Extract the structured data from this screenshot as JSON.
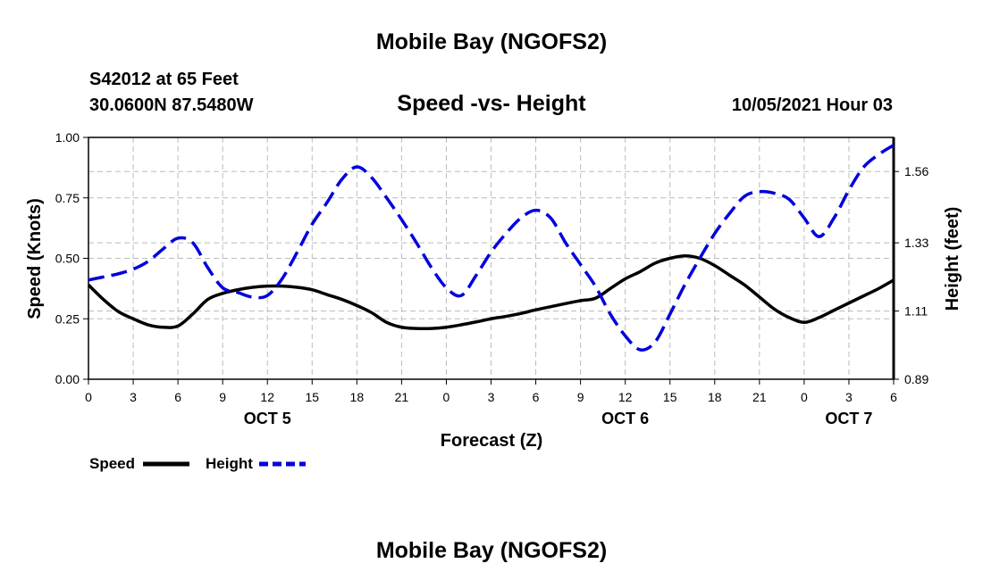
{
  "header": {
    "top_title": "Mobile Bay (NGOFS2)",
    "bottom_title": "Mobile Bay (NGOFS2)",
    "station": "S42012 at 65 Feet",
    "coords": "30.0600N  87.5480W",
    "chart_title": "Speed -vs- Height",
    "timestamp": "10/05/2021 Hour 03"
  },
  "colors": {
    "speed": "#000000",
    "height": "#0000dd",
    "grid": "#bbbbbb"
  },
  "chart_data": {
    "type": "line",
    "title": "Speed -vs- Height",
    "xlabel": "Forecast (Z)",
    "ylabel": "Speed (Knots)",
    "y2label": "Height (feet)",
    "xlim": [
      0,
      54
    ],
    "ylim": [
      0,
      1
    ],
    "y2lim": [
      0.89,
      1.67
    ],
    "grid": true,
    "x_ticks": [
      0,
      3,
      6,
      9,
      12,
      15,
      18,
      21,
      24,
      27,
      30,
      33,
      36,
      39,
      42,
      45,
      48,
      51,
      54
    ],
    "x_tick_labels": [
      "0",
      "3",
      "6",
      "9",
      "12",
      "15",
      "18",
      "21",
      "0",
      "3",
      "6",
      "9",
      "12",
      "15",
      "18",
      "21",
      "0",
      "3",
      "6"
    ],
    "date_labels": [
      {
        "x": 12,
        "label": "OCT 5"
      },
      {
        "x": 36,
        "label": "OCT 6"
      },
      {
        "x": 51,
        "label": "OCT 7"
      }
    ],
    "y_ticks": [
      0,
      0.25,
      0.5,
      0.75,
      1.0
    ],
    "y_tick_labels": [
      "0.00",
      "0.25",
      "0.50",
      "0.75",
      "1.00"
    ],
    "y2_ticks": [
      0.89,
      1.11,
      1.33,
      1.56
    ],
    "y2_tick_labels": [
      "0.89",
      "1.11",
      "1.33",
      "1.56"
    ],
    "legend": {
      "placement": "bottom-left",
      "speed_label": "Speed",
      "height_label": "Height"
    },
    "series": [
      {
        "name": "Speed",
        "axis": "left",
        "style": "solid",
        "x": [
          0,
          1,
          2,
          3,
          4,
          5,
          6,
          7,
          8,
          9,
          10,
          11,
          12,
          13,
          14,
          15,
          16,
          17,
          18,
          19,
          20,
          21,
          22,
          23,
          24,
          25,
          26,
          27,
          28,
          29,
          30,
          31,
          32,
          33,
          34,
          35,
          36,
          37,
          38,
          39,
          40,
          41,
          42,
          43,
          44,
          45,
          46,
          47,
          48,
          49,
          50,
          51,
          52,
          53,
          54
        ],
        "values": [
          0.39,
          0.33,
          0.28,
          0.25,
          0.225,
          0.215,
          0.22,
          0.27,
          0.33,
          0.355,
          0.37,
          0.38,
          0.385,
          0.385,
          0.38,
          0.37,
          0.35,
          0.33,
          0.305,
          0.275,
          0.235,
          0.215,
          0.21,
          0.21,
          0.215,
          0.225,
          0.237,
          0.25,
          0.26,
          0.272,
          0.287,
          0.3,
          0.313,
          0.325,
          0.335,
          0.375,
          0.415,
          0.445,
          0.48,
          0.5,
          0.51,
          0.5,
          0.47,
          0.43,
          0.39,
          0.34,
          0.29,
          0.255,
          0.235,
          0.255,
          0.285,
          0.315,
          0.345,
          0.375,
          0.41
        ]
      },
      {
        "name": "Height",
        "axis": "right",
        "style": "dashed",
        "x": [
          0,
          1,
          2,
          3,
          4,
          5,
          6,
          7,
          8,
          9,
          10,
          11,
          12,
          13,
          14,
          15,
          16,
          17,
          18,
          19,
          20,
          21,
          22,
          23,
          24,
          25,
          26,
          27,
          28,
          29,
          30,
          31,
          32,
          33,
          34,
          35,
          36,
          37,
          38,
          39,
          40,
          41,
          42,
          43,
          44,
          45,
          46,
          47,
          48,
          49,
          50,
          51,
          52,
          53,
          54
        ],
        "values": [
          1.21,
          1.22,
          1.23,
          1.245,
          1.27,
          1.31,
          1.345,
          1.33,
          1.25,
          1.185,
          1.17,
          1.155,
          1.16,
          1.215,
          1.3,
          1.39,
          1.46,
          1.535,
          1.575,
          1.54,
          1.475,
          1.405,
          1.33,
          1.25,
          1.185,
          1.16,
          1.225,
          1.3,
          1.36,
          1.41,
          1.435,
          1.41,
          1.33,
          1.26,
          1.19,
          1.1,
          1.03,
          0.985,
          1.01,
          1.1,
          1.195,
          1.28,
          1.36,
          1.425,
          1.48,
          1.495,
          1.49,
          1.47,
          1.41,
          1.35,
          1.41,
          1.5,
          1.575,
          1.615,
          1.645
        ]
      }
    ]
  }
}
